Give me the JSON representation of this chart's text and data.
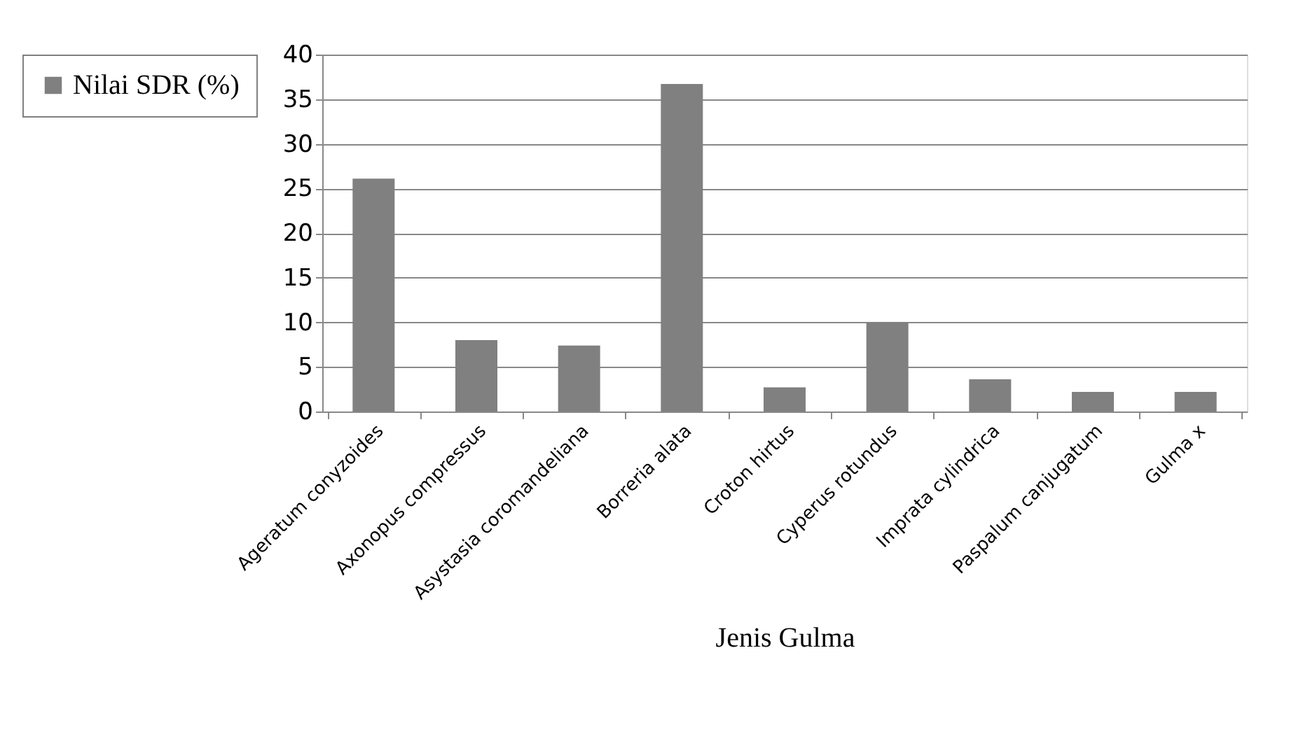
{
  "chart_data": {
    "type": "bar",
    "xlabel": "Jenis Gulma",
    "categories": [
      "Ageratum conyzoides",
      "Axonopus compressus",
      "Asystasia coromandeliana",
      "Borreria alata",
      "Croton hirtus",
      "Cyperus rotundus",
      "Imprata  cylindrica",
      "Paspalum canjugatum",
      "Gulma x"
    ],
    "series": [
      {
        "name": "Nilai SDR (%)",
        "color": "#808080",
        "values": [
          26.1,
          8.0,
          7.4,
          36.7,
          2.7,
          10.0,
          3.6,
          2.2,
          2.2
        ]
      }
    ],
    "ylim": [
      0,
      40
    ],
    "yticks": [
      0,
      5,
      10,
      15,
      20,
      25,
      30,
      35,
      40
    ],
    "grid": "y",
    "legend": "left"
  }
}
